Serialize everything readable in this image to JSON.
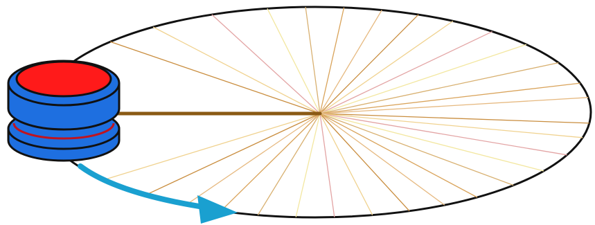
{
  "diagram": {
    "subject": "yoyo-circular-motion",
    "colors": {
      "background": "#ffffff",
      "orbit_outline": "#111111",
      "string": "#8a5a14",
      "spoke_palette": [
        "#d9a35a",
        "#e6b980",
        "#c98d3e",
        "#f0d28f",
        "#e3a4a4",
        "#f3e7a0",
        "#d8b070"
      ],
      "yoyo_top": "#ff1a1a",
      "yoyo_body": "#1e6fe0",
      "yoyo_outline": "#111111",
      "yoyo_groove": "#c0141e",
      "arrow": "#1aa0d0"
    },
    "icons": {
      "yoyo": "yoyo-icon",
      "motion_arrow": "curved-arrow-icon"
    }
  }
}
